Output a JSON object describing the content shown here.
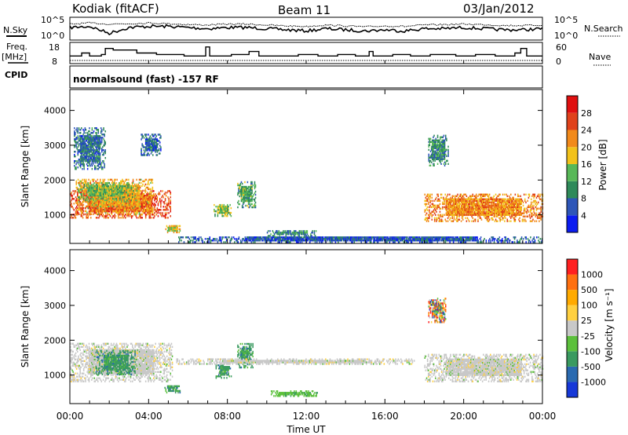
{
  "header": {
    "station": "Kodiak (fitACF)",
    "beam": "Beam 11",
    "date": "03/Jan/2012"
  },
  "left_labels": {
    "nsky": "N.Sky",
    "freq_top": "Freq.",
    "freq_unit": "[MHz]",
    "cpid": "CPID"
  },
  "right_labels": {
    "nsearch": "N.Search",
    "nave": "Nave"
  },
  "cpid_text": "normalsound (fast) -157 RF",
  "colors": {
    "power": [
      "#0b1cf0",
      "#2e56b8",
      "#2f8a5a",
      "#58b858",
      "#f2c21b",
      "#f28a1b",
      "#e0421b",
      "#e01010"
    ],
    "velocity": [
      "#ff2020",
      "#ff7010",
      "#ffaa00",
      "#ffd040",
      "#c8c8c8",
      "#5cc03c",
      "#3a9a60",
      "#2a6ab0",
      "#1638d8"
    ]
  },
  "chart_data": [
    {
      "type": "line",
      "panel": "noise",
      "ytick_labels": [
        "10^5",
        "10^0"
      ],
      "y2tick_labels": [
        "10^5",
        "10^0"
      ],
      "x": [
        0,
        1,
        1.7,
        2,
        3,
        4,
        5,
        6,
        7,
        8,
        9,
        10,
        11,
        12,
        13,
        14,
        15,
        16,
        17,
        18,
        19,
        20,
        21,
        22,
        23,
        24
      ],
      "series": [
        {
          "name": "N.Sky",
          "values": [
            0.55,
            0.6,
            0.3,
            0.55,
            0.6,
            0.6,
            0.55,
            0.5,
            0.55,
            0.55,
            0.5,
            0.45,
            0.4,
            0.5,
            0.45,
            0.4,
            0.45,
            0.4,
            0.5,
            0.5,
            0.55,
            0.5,
            0.45,
            0.45,
            0.5,
            0.55
          ]
        },
        {
          "name": "N.Search",
          "values": [
            0.7,
            0.75,
            0.7,
            0.72,
            0.75,
            0.72,
            0.68,
            0.66,
            0.7,
            0.7,
            0.66,
            0.62,
            0.6,
            0.66,
            0.62,
            0.58,
            0.62,
            0.6,
            0.66,
            0.68,
            0.7,
            0.68,
            0.64,
            0.64,
            0.66,
            0.7
          ]
        }
      ]
    },
    {
      "type": "line",
      "panel": "freq_nave",
      "ytick_labels": [
        "18",
        "8"
      ],
      "y2tick_labels": [
        "60",
        "0"
      ],
      "series": [
        {
          "name": "Freq.",
          "steps": [
            [
              0,
              11
            ],
            [
              0.6,
              13
            ],
            [
              1,
              11
            ],
            [
              1.6,
              12
            ],
            [
              1.8,
              16
            ],
            [
              2.2,
              15
            ],
            [
              3.4,
              13
            ],
            [
              4.4,
              12
            ],
            [
              5.1,
              12
            ],
            [
              5.8,
              11
            ],
            [
              6.9,
              17
            ],
            [
              7.1,
              11
            ],
            [
              8.2,
              12
            ],
            [
              9.1,
              14
            ],
            [
              9.6,
              11
            ],
            [
              11.6,
              12
            ],
            [
              12.6,
              11
            ],
            [
              13.6,
              12
            ],
            [
              14.5,
              11
            ],
            [
              15.2,
              14
            ],
            [
              15.4,
              11
            ],
            [
              16.4,
              12
            ],
            [
              17.3,
              11
            ],
            [
              18.3,
              12
            ],
            [
              19.6,
              11
            ],
            [
              20.6,
              12
            ],
            [
              21.6,
              11
            ],
            [
              22.6,
              13
            ],
            [
              22.9,
              16
            ],
            [
              23.2,
              11
            ],
            [
              24,
              11
            ]
          ]
        },
        {
          "name": "Nave",
          "values": [
            9,
            9,
            9,
            9,
            9,
            9,
            9,
            9,
            9,
            9,
            9,
            9,
            9,
            9,
            9,
            9,
            9,
            9,
            9,
            9,
            9,
            9,
            9,
            9,
            9
          ]
        }
      ]
    },
    {
      "type": "heatmap",
      "panel": "power",
      "ylabel": "Slant Range [km]",
      "ytick_labels": [
        "1000",
        "2000",
        "3000",
        "4000"
      ],
      "yticks": [
        1000,
        2000,
        3000,
        4000
      ],
      "ylim": [
        180,
        4600
      ],
      "xlim": [
        0,
        24
      ],
      "colorbar_label": "Power [dB]",
      "colorbar_ticks": [
        "4",
        "8",
        "12",
        "16",
        "20",
        "24",
        "28"
      ],
      "clim": [
        0,
        32
      ],
      "regions": [
        {
          "t": [
            0.0,
            5.1
          ],
          "r": [
            900,
            1700
          ],
          "level": 26
        },
        {
          "t": [
            0.3,
            4.2
          ],
          "r": [
            1000,
            2000
          ],
          "level": 20
        },
        {
          "t": [
            0.4,
            3.2
          ],
          "r": [
            1400,
            1900
          ],
          "level": 14
        },
        {
          "t": [
            0.2,
            1.8
          ],
          "r": [
            2300,
            3500
          ],
          "level": 8
        },
        {
          "t": [
            3.6,
            4.6
          ],
          "r": [
            2700,
            3300
          ],
          "level": 7
        },
        {
          "t": [
            4.8,
            5.6
          ],
          "r": [
            480,
            700
          ],
          "level": 18
        },
        {
          "t": [
            7.3,
            8.2
          ],
          "r": [
            950,
            1300
          ],
          "level": 15
        },
        {
          "t": [
            8.5,
            9.4
          ],
          "r": [
            1200,
            1950
          ],
          "level": 12
        },
        {
          "t": [
            10.0,
            12.5
          ],
          "r": [
            380,
            520
          ],
          "level": 10
        },
        {
          "t": [
            18.0,
            24.0
          ],
          "r": [
            800,
            1600
          ],
          "level": 22
        },
        {
          "t": [
            18.2,
            19.2
          ],
          "r": [
            2400,
            3300
          ],
          "level": 10
        },
        {
          "t": [
            5.5,
            24.0
          ],
          "r": [
            200,
            380
          ],
          "level": 6
        }
      ]
    },
    {
      "type": "heatmap",
      "panel": "velocity",
      "ylabel": "Slant Range [km]",
      "ytick_labels": [
        "1000",
        "2000",
        "3000",
        "4000"
      ],
      "yticks": [
        1000,
        2000,
        3000,
        4000
      ],
      "ylim": [
        180,
        4600
      ],
      "xlim": [
        0,
        24
      ],
      "xtick_labels": [
        "00:00",
        "04:00",
        "08:00",
        "12:00",
        "16:00",
        "20:00",
        "00:00"
      ],
      "xticks": [
        0,
        4,
        8,
        12,
        16,
        20,
        24
      ],
      "xlabel": "Time UT",
      "colorbar_label": "Velocity [m s⁻¹]",
      "colorbar_ticks": [
        "1000",
        "500",
        "100",
        "25",
        "-25",
        "-100",
        "-500",
        "-1000"
      ],
      "regions": [
        {
          "t": [
            0.0,
            5.2
          ],
          "r": [
            800,
            1900
          ],
          "cls": "grey"
        },
        {
          "t": [
            1.3,
            3.3
          ],
          "r": [
            1000,
            1700
          ],
          "cls": "green"
        },
        {
          "t": [
            4.8,
            5.6
          ],
          "r": [
            480,
            700
          ],
          "cls": "green"
        },
        {
          "t": [
            7.4,
            8.2
          ],
          "r": [
            900,
            1300
          ],
          "cls": "green"
        },
        {
          "t": [
            8.5,
            9.3
          ],
          "r": [
            1200,
            1900
          ],
          "cls": "green"
        },
        {
          "t": [
            10.2,
            12.6
          ],
          "r": [
            380,
            520
          ],
          "cls": "lightgreen"
        },
        {
          "t": [
            5.4,
            17.5
          ],
          "r": [
            1300,
            1450
          ],
          "cls": "grey"
        },
        {
          "t": [
            18.0,
            24.0
          ],
          "r": [
            800,
            1600
          ],
          "cls": "grey"
        },
        {
          "t": [
            18.2,
            19.1
          ],
          "r": [
            2500,
            3200
          ],
          "cls": "mixed"
        }
      ]
    }
  ]
}
